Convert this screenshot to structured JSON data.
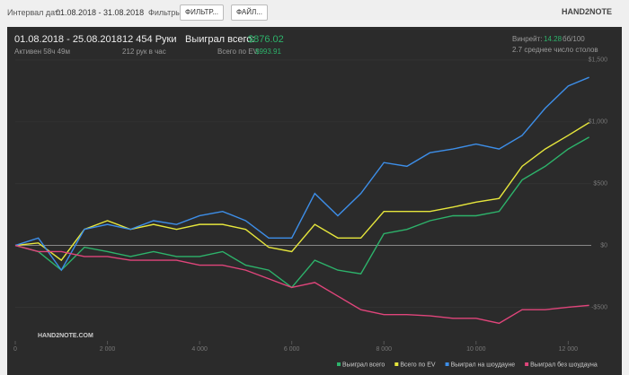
{
  "toolbar": {
    "interval_label": "Интервал дат:",
    "interval_value": "01.08.2018 - 31.08.2018",
    "filters_label": "Фильтры:",
    "filter_button": "ФИЛЬТР...",
    "file_button": "ФАЙЛ...",
    "logo": "HAND2NOTE"
  },
  "stats": {
    "period": "01.08.2018 - 25.08.2018",
    "active": "Активен 58ч 49м",
    "hands": "12 454 Руки",
    "hands_per_hour": "212 рук в час",
    "won_label": "Выиграл всего:",
    "won_value": "$876.02",
    "ev_label": "Всего по EV:",
    "ev_value": "$993.91",
    "winrate_label": "Винрейт:",
    "winrate_value": "14.28",
    "winrate_unit": "бб/100",
    "tables": "2.7 среднее число столов"
  },
  "chart_data": {
    "type": "line",
    "watermark": "HAND2NOTE.COM",
    "x": [
      0,
      500,
      1000,
      1500,
      2000,
      2500,
      3000,
      3500,
      4000,
      4500,
      5000,
      5500,
      6000,
      6500,
      7000,
      7500,
      8000,
      8500,
      9000,
      9500,
      10000,
      10500,
      11000,
      11500,
      12000,
      12454
    ],
    "series": [
      {
        "name": "Выиграл всего",
        "color": "#2db36b",
        "values": [
          0,
          -50,
          -200,
          -15,
          -50,
          -90,
          -50,
          -90,
          -90,
          -50,
          -160,
          -200,
          -340,
          -120,
          -200,
          -230,
          95,
          130,
          200,
          240,
          240,
          275,
          530,
          640,
          780,
          876
        ]
      },
      {
        "name": "Всего по EV",
        "color": "#e6e63c",
        "values": [
          0,
          20,
          -120,
          130,
          200,
          130,
          170,
          130,
          170,
          170,
          130,
          -15,
          -50,
          170,
          60,
          60,
          275,
          275,
          275,
          310,
          350,
          380,
          640,
          780,
          890,
          994
        ]
      },
      {
        "name": "Выиграл на шоудауне",
        "color": "#3d8ee8",
        "values": [
          0,
          60,
          -200,
          130,
          170,
          130,
          200,
          170,
          240,
          275,
          200,
          60,
          60,
          420,
          240,
          420,
          670,
          640,
          750,
          780,
          820,
          780,
          890,
          1110,
          1290,
          1360
        ]
      },
      {
        "name": "Выиграл без шоудауна",
        "color": "#e0457b",
        "values": [
          0,
          -50,
          -50,
          -90,
          -90,
          -120,
          -120,
          -120,
          -160,
          -160,
          -200,
          -270,
          -340,
          -300,
          -410,
          -520,
          -560,
          -560,
          -570,
          -590,
          -590,
          -630,
          -520,
          -520,
          -500,
          -485
        ]
      }
    ],
    "xlim": [
      0,
      12500
    ],
    "ylim": [
      -700,
      1550
    ],
    "xticks": [
      0,
      {
        "value": 2000,
        "label": "2 000"
      },
      {
        "value": 4000,
        "label": "4 000"
      },
      {
        "value": 6000,
        "label": "6 000"
      },
      {
        "value": 8000,
        "label": "8 000"
      },
      {
        "value": 10000,
        "label": "10 000"
      },
      {
        "value": 12000,
        "label": "12 000"
      }
    ],
    "yticks": [
      {
        "value": -500,
        "label": "-$500"
      },
      {
        "value": 0,
        "label": "$0"
      },
      {
        "value": 500,
        "label": "$500"
      },
      {
        "value": 1000,
        "label": "$1,000"
      },
      {
        "value": 1500,
        "label": "$1,500"
      }
    ],
    "grid": true
  }
}
